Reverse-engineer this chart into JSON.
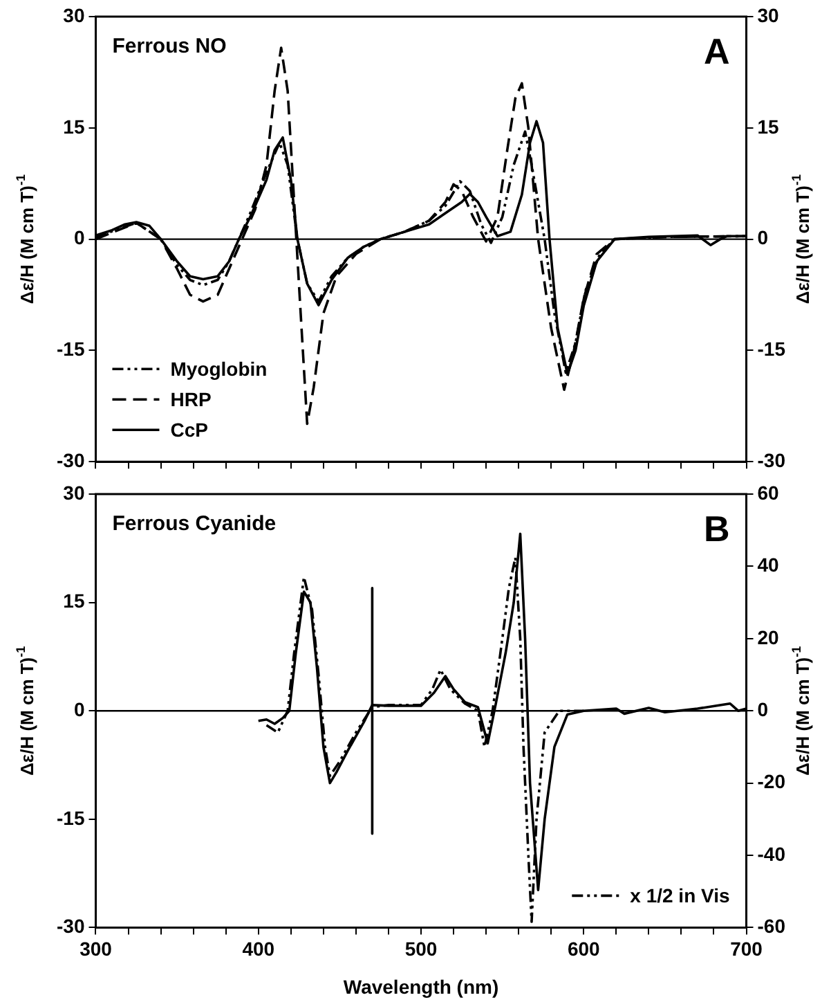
{
  "chart_data": [
    {
      "type": "line",
      "title": "Ferrous NO",
      "annotations": [
        "A"
      ],
      "ylabel": "Δε/H (M cm T)$^{-1}$",
      "y2label": "Δε/H (M cm T)$^{-1}$",
      "xlim": [
        300,
        700
      ],
      "xticks": [
        300,
        {
          "value": 320,
          "label": null
        },
        {
          "value": 340,
          "label": null
        },
        {
          "value": 360,
          "label": null
        },
        {
          "value": 380,
          "label": null
        },
        400,
        {
          "value": 420,
          "label": null
        },
        {
          "value": 440,
          "label": null
        },
        {
          "value": 460,
          "label": null
        },
        {
          "value": 480,
          "label": null
        },
        500,
        {
          "value": 520,
          "label": null
        },
        {
          "value": 540,
          "label": null
        },
        {
          "value": 560,
          "label": null
        },
        {
          "value": 580,
          "label": null
        },
        600,
        {
          "value": 620,
          "label": null
        },
        {
          "value": 640,
          "label": null
        },
        {
          "value": 660,
          "label": null
        },
        {
          "value": 680,
          "label": null
        },
        700
      ],
      "ylim": [
        -30,
        30
      ],
      "yticks": [
        -30,
        -15,
        0,
        15,
        30
      ],
      "y2lim": [
        -30,
        30
      ],
      "y2ticks": [
        -30,
        -15,
        0,
        15,
        30
      ],
      "tick_labels": "y",
      "legend": "bottom left",
      "marker": "none",
      "ref_lines": [
        {
          "axis": "y",
          "value": 0
        }
      ],
      "series": [
        {
          "name": "Myoglobin",
          "color": "#000000",
          "line_style": "dotted",
          "x": [
            300,
            325,
            340,
            350,
            358,
            366,
            375,
            382,
            388,
            395,
            405,
            413,
            418,
            424,
            430,
            437,
            445,
            455,
            465,
            475,
            490,
            505,
            515,
            524,
            530,
            537,
            543,
            550,
            557,
            564,
            568,
            576,
            582,
            589,
            595,
            601,
            610,
            619,
            650,
            700
          ],
          "values": [
            0.3,
            2.2,
            0,
            -3.5,
            -5.5,
            -6.2,
            -5.5,
            -3,
            0,
            3.5,
            9,
            13,
            10,
            0,
            -6,
            -8.4,
            -5,
            -2.5,
            -1,
            0,
            1,
            2.5,
            4.5,
            7.8,
            6.5,
            2,
            -0.5,
            3,
            10,
            14.5,
            10,
            0,
            -10,
            -18,
            -14,
            -7,
            -2,
            0,
            0.3,
            0.4
          ]
        },
        {
          "name": "HRP",
          "color": "#000000",
          "line_style": "dashed",
          "x": [
            300,
            325,
            340,
            350,
            358,
            366,
            375,
            382,
            390,
            398,
            405,
            410,
            414,
            418,
            422,
            426,
            430,
            434,
            440,
            448,
            460,
            475,
            490,
            505,
            515,
            520,
            525,
            532,
            540,
            547,
            553,
            558,
            562,
            566,
            572,
            580,
            588,
            594,
            600,
            608,
            619,
            650,
            700
          ],
          "values": [
            0,
            2.2,
            0,
            -4,
            -7.5,
            -8.4,
            -7.5,
            -4,
            0,
            4,
            10,
            20,
            25.8,
            20,
            5,
            -10,
            -24.9,
            -20,
            -10,
            -5,
            -2,
            0,
            1,
            2.5,
            5,
            7.4,
            6.5,
            3,
            -0.3,
            3,
            12,
            19,
            21,
            15,
            0,
            -12,
            -20.3,
            -15,
            -8,
            -2,
            0,
            0.3,
            0.4
          ]
        },
        {
          "name": "CcP",
          "color": "#000000",
          "line_style": "solid",
          "x": [
            300,
            310,
            318,
            325,
            333,
            340,
            350,
            358,
            366,
            375,
            382,
            388,
            395,
            405,
            410,
            415,
            420,
            424,
            430,
            437,
            445,
            455,
            465,
            475,
            490,
            505,
            515,
            525,
            530,
            535,
            540,
            547,
            555,
            562,
            567,
            571,
            575,
            579,
            584,
            590,
            595,
            600,
            608,
            619,
            640,
            670,
            678,
            684,
            688,
            700
          ],
          "values": [
            0.5,
            1.2,
            2,
            2.3,
            1.8,
            0,
            -3,
            -5,
            -5.4,
            -5,
            -3,
            0,
            3,
            8,
            12,
            13.7,
            8,
            0,
            -6,
            -8.9,
            -5.5,
            -2.5,
            -1,
            0,
            1,
            2,
            3.5,
            5,
            6.1,
            5,
            3,
            0.4,
            1,
            6,
            13,
            15.9,
            13,
            0,
            -12,
            -18.2,
            -15,
            -9,
            -3,
            0,
            0.3,
            0.5,
            -0.8,
            0,
            0.4,
            0.4
          ]
        }
      ]
    },
    {
      "type": "line",
      "title": "Ferrous Cyanide",
      "annotations": [
        "B"
      ],
      "xlabel": "Wavelength (nm)",
      "ylabel": "Δε/H (M cm T)$^{-1}$",
      "y2label": "Δε/H (M cm T)$^{-1}$",
      "xlim": [
        300,
        700
      ],
      "xticks": [
        300,
        {
          "value": 320,
          "label": null
        },
        {
          "value": 340,
          "label": null
        },
        {
          "value": 360,
          "label": null
        },
        {
          "value": 380,
          "label": null
        },
        400,
        {
          "value": 420,
          "label": null
        },
        {
          "value": 440,
          "label": null
        },
        {
          "value": 460,
          "label": null
        },
        {
          "value": 480,
          "label": null
        },
        500,
        {
          "value": 520,
          "label": null
        },
        {
          "value": 540,
          "label": null
        },
        {
          "value": 560,
          "label": null
        },
        {
          "value": 580,
          "label": null
        },
        600,
        {
          "value": 620,
          "label": null
        },
        {
          "value": 640,
          "label": null
        },
        {
          "value": 660,
          "label": null
        },
        {
          "value": 680,
          "label": null
        },
        700
      ],
      "ylim": [
        -30,
        30
      ],
      "yticks": [
        -30,
        -15,
        0,
        15,
        30
      ],
      "y2lim": [
        -60,
        60
      ],
      "y2ticks": [
        -60,
        -40,
        -20,
        0,
        20,
        40,
        60
      ],
      "legend": "bottom right",
      "marker": "none",
      "ref_lines": [
        {
          "axis": "y",
          "value": 0
        }
      ],
      "series": [
        {
          "color": "#000000",
          "line_style": "solid",
          "x": [
            400,
            405,
            410,
            415,
            419,
            423,
            428,
            432,
            436,
            440,
            444,
            448,
            455,
            465,
            470,
            480,
            500,
            508,
            515,
            520,
            527,
            535,
            541,
            546,
            552,
            557,
            561,
            564,
            567,
            572,
            576,
            582,
            590,
            600,
            620,
            625,
            640,
            650,
            670,
            690,
            695,
            700
          ],
          "values": [
            -1.4,
            -1.2,
            -1.8,
            -1,
            0,
            8,
            16.5,
            15,
            6,
            -5,
            -10,
            -8.5,
            -5.5,
            -1.5,
            0.8,
            0.7,
            0.7,
            2.5,
            4.8,
            3,
            1.2,
            0.5,
            -4.5,
            1,
            8,
            15,
            24.5,
            10,
            -10,
            -24.8,
            -15,
            -5,
            -0.5,
            0,
            0.3,
            -0.4,
            0.4,
            -0.2,
            0.3,
            1,
            0,
            0.3
          ]
        },
        {
          "name": "x 1/2 in Vis",
          "color": "#000000",
          "line_style": "dotted",
          "x": [
            405,
            412,
            418,
            422,
            428,
            433,
            437,
            441,
            444,
            450,
            460,
            470,
            480,
            500,
            507,
            512,
            518,
            527,
            535,
            539,
            544,
            550,
            554,
            558,
            561,
            563,
            566,
            568,
            571,
            576,
            585,
            600
          ],
          "values": [
            -2,
            -3,
            0,
            8,
            18.5,
            14,
            5,
            -5,
            -9,
            -7,
            -3,
            0.5,
            0.8,
            0.8,
            3,
            5.7,
            3,
            1,
            0,
            -5,
            0,
            10,
            17,
            21.2,
            10,
            -5,
            -20,
            -29.2,
            -15,
            -3,
            0,
            0
          ]
        },
        {
          "color": "#000000",
          "line_style": "solid",
          "x": [
            470,
            470
          ],
          "values": [
            17,
            -17
          ]
        }
      ]
    }
  ]
}
